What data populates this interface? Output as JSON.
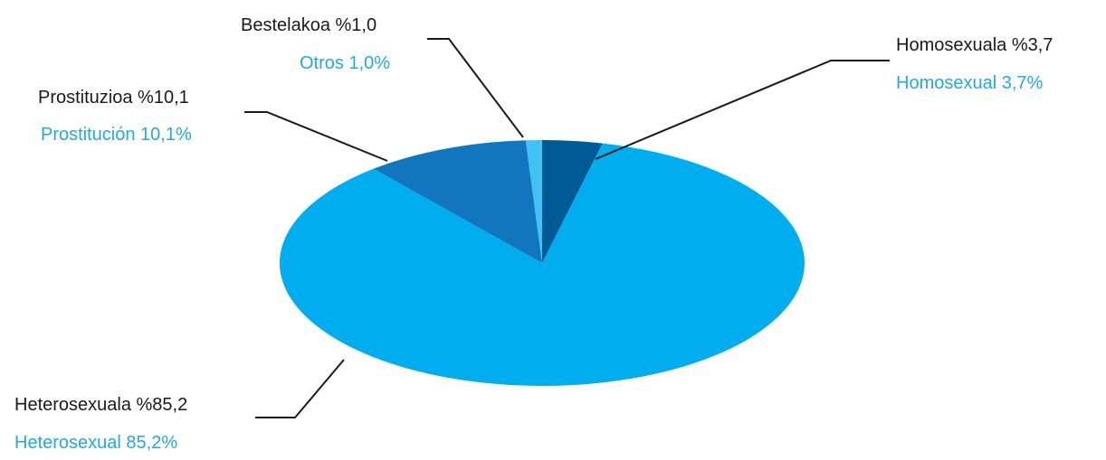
{
  "chart_data": {
    "type": "pie",
    "title": "",
    "slices": [
      {
        "label_eu": "Homosexuala %3,7",
        "label_es": "Homosexual 3,7%",
        "value": 3.7,
        "color": "#005a96"
      },
      {
        "label_eu": "Heterosexuala %85,2",
        "label_es": "Heterosexual 85,2%",
        "value": 85.2,
        "color": "#00adee"
      },
      {
        "label_eu": "Prostituzioa %10,1",
        "label_es": "Prostitución 10,1%",
        "value": 10.1,
        "color": "#1276bf"
      },
      {
        "label_eu": "Bestelakoa %1,0",
        "label_es": "Otros 1,0%",
        "value": 1.0,
        "color": "#41c2f2"
      }
    ],
    "label_color_primary": "#1a1a1a",
    "label_color_secondary": "#21a9e1",
    "leader_color": "#1a1a1a",
    "legend": "none (callout labels)"
  }
}
